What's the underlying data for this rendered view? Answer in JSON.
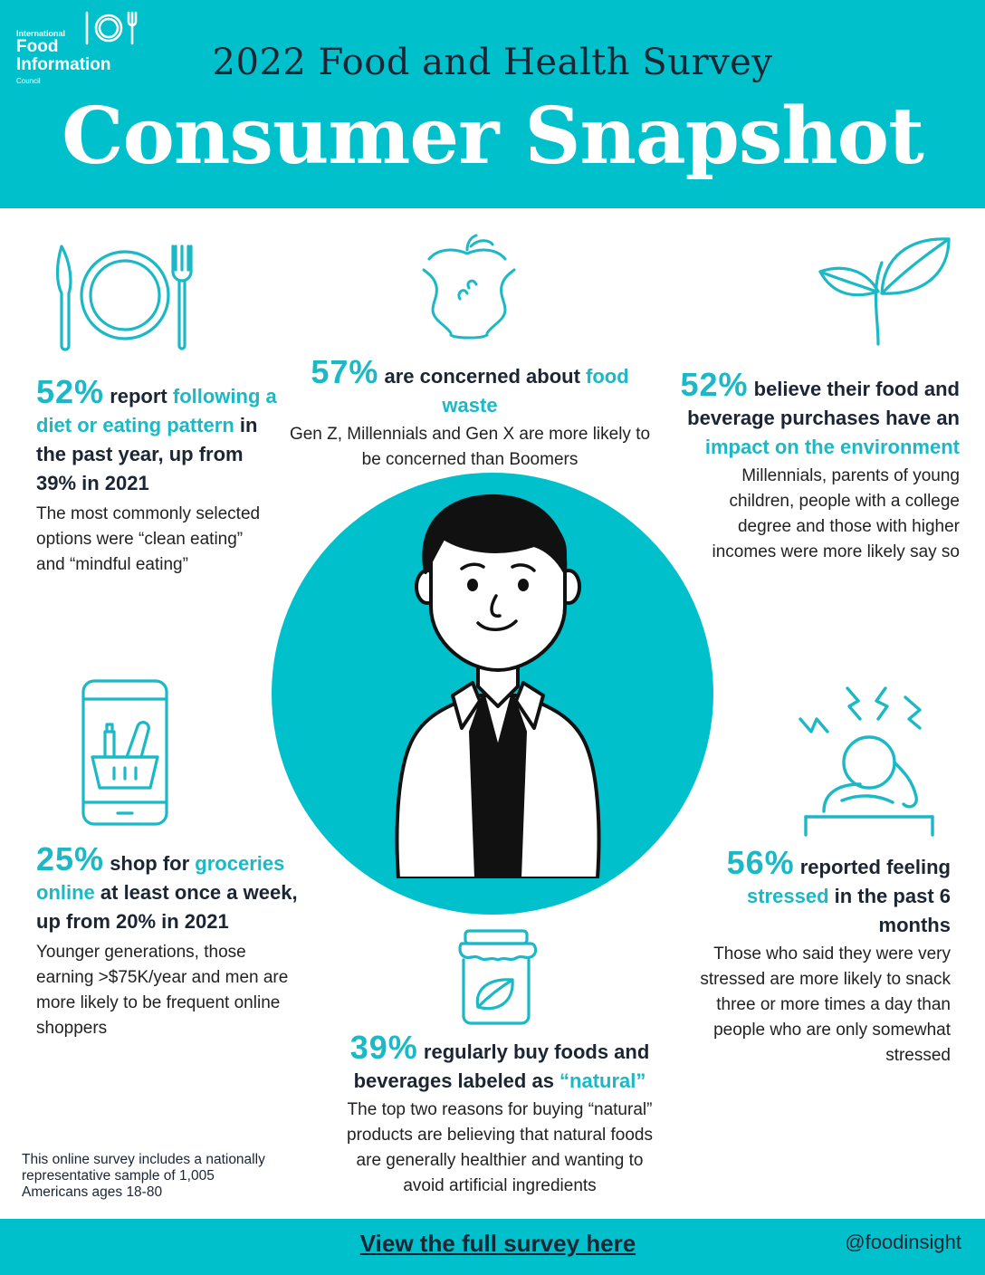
{
  "header": {
    "logo": {
      "line1": "International",
      "line2": "Food",
      "line3": "Information",
      "line4": "Council"
    },
    "survey_title": "2022 Food and Health Survey",
    "snapshot_title": "Consumer Snapshot"
  },
  "stats": {
    "diet": {
      "pct": "52%",
      "lead_a": "report ",
      "lead_hl": "following a diet or eating pattern",
      "lead_b": " in the past year, up from 39% in 2021",
      "desc": "The most commonly selected options were “clean eating” and “mindful eating”"
    },
    "waste": {
      "pct": "57%",
      "lead_a": "are concerned about ",
      "lead_hl": "food waste",
      "desc": "Gen Z, Millennials and Gen X are more likely to be concerned than Boomers"
    },
    "environment": {
      "pct": "52%",
      "lead_a": "believe their food and beverage purchases have an ",
      "lead_hl": "impact on the environment",
      "desc": "Millennials, parents of young children, people with a college degree and those with higher incomes were more likely say so"
    },
    "groceries": {
      "pct": "25%",
      "lead_a": "shop for ",
      "lead_hl": "groceries online",
      "lead_b": " at least once a week, up from 20% in 2021",
      "desc": "Younger generations, those earning >$75K/year and men are more likely to be frequent online shoppers"
    },
    "stress": {
      "pct": "56%",
      "lead_a": "reported feeling ",
      "lead_hl": "stressed",
      "lead_b": " in the past 6 months",
      "desc": "Those who said they were very stressed are more likely to snack three or more times a day than people who are only somewhat stressed"
    },
    "natural": {
      "pct": "39%",
      "lead_a": "regularly buy foods and beverages labeled as ",
      "lead_hl": "“natural”",
      "desc": "The top two reasons for buying “natural” products are believing that natural foods are generally healthier and wanting to avoid artificial ingredients"
    }
  },
  "footnote": "This online survey includes a nationally representative sample of 1,005 Americans ages 18-80",
  "footer": {
    "link": "View the full survey here",
    "handle": "@foodinsight"
  },
  "colors": {
    "teal": "#00c0cc",
    "accent_text": "#1bb8c6",
    "dark": "#1b2533"
  },
  "icons": [
    "plate-fork-knife-icon",
    "apple-core-icon",
    "sprout-icon",
    "phone-grocery-basket-icon",
    "stressed-person-icon",
    "jar-icon",
    "person-illustration"
  ]
}
